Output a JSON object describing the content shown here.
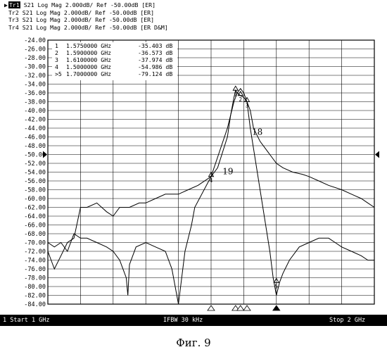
{
  "traces_header": [
    {
      "id": "Tr1",
      "text": "S21 Log Mag 2.000dB/ Ref -50.00dB [ER]",
      "selected": true
    },
    {
      "id": "Tr2",
      "text": "S21 Log Mag 2.000dB/ Ref -50.00dB [ER]",
      "selected": false
    },
    {
      "id": "Tr3",
      "text": "S21 Log Mag 2.000dB/ Ref -50.00dB [ER]",
      "selected": false
    },
    {
      "id": "Tr4",
      "text": "S21 Log Mag 2.000dB/ Ref -50.00dB [ER D&M]",
      "selected": false
    }
  ],
  "status": {
    "left": "1  Start 1 GHz",
    "center": "IFBW 30 kHz",
    "right": "Stop 2 GHz"
  },
  "caption": "Фиг. 9",
  "colors": {
    "trace": "#000000",
    "grid": "#000000",
    "background": "#ffffff"
  },
  "chart_data": {
    "type": "line",
    "x_range_ghz": [
      1.0,
      2.0
    ],
    "ylim": [
      -84,
      -24
    ],
    "ytick_step": 2,
    "yticks": [
      "-24.00",
      "-26.00",
      "-28.00",
      "-30.00",
      "-32.00",
      "-34.00",
      "-36.00",
      "-38.00",
      "-40.00",
      "-42.00",
      "-44.00",
      "-46.00",
      "-48.00",
      "-50.00",
      "-52.00",
      "-54.00",
      "-56.00",
      "-58.00",
      "-60.00",
      "-62.00",
      "-64.00",
      "-66.00",
      "-68.00",
      "-70.00",
      "-72.00",
      "-74.00",
      "-76.00",
      "-78.00",
      "-80.00",
      "-82.00",
      "-84.00"
    ],
    "x_divisions": 10,
    "grid": true,
    "reference_level": -50,
    "marker_table": [
      {
        "n": "1",
        "freq": "1.5750000 GHz",
        "value": "-35.403 dB"
      },
      {
        "n": "2",
        "freq": "1.5900000 GHz",
        "value": "-36.573 dB"
      },
      {
        "n": "3",
        "freq": "1.6100000 GHz",
        "value": "-37.974 dB"
      },
      {
        "n": "4",
        "freq": "1.5000000 GHz",
        "value": "-54.986 dB"
      },
      {
        "n": ">5",
        "freq": "1.7000000 GHz",
        "value": "-79.124 dB"
      }
    ],
    "markers": [
      {
        "label": "1",
        "x": 1.575,
        "y": -35.4
      },
      {
        "label": "2",
        "x": 1.59,
        "y": -36.6
      },
      {
        "label": "3",
        "x": 1.61,
        "y": -38.0
      },
      {
        "label": "4",
        "x": 1.5,
        "y": -55.0
      },
      {
        "label": "5",
        "x": 1.7,
        "y": -79.1
      }
    ],
    "annotations": [
      {
        "text": "18",
        "x": 1.625,
        "y": -45.5
      },
      {
        "text": "19",
        "x": 1.535,
        "y": -54.5
      }
    ],
    "series": [
      {
        "x": [
          1.0,
          1.02,
          1.04,
          1.06,
          1.08,
          1.1,
          1.12,
          1.15,
          1.18,
          1.2,
          1.22,
          1.25,
          1.28,
          1.3,
          1.33,
          1.36,
          1.4,
          1.43,
          1.46,
          1.5,
          1.52,
          1.55,
          1.56,
          1.57,
          1.575,
          1.58,
          1.59,
          1.6,
          1.61,
          1.62,
          1.63,
          1.65,
          1.68,
          1.7,
          1.72,
          1.75,
          1.78,
          1.8,
          1.83,
          1.86,
          1.9,
          1.93,
          1.96,
          1.98,
          2.0
        ],
        "y": [
          -72,
          -76,
          -73,
          -70,
          -69,
          -62,
          -62,
          -61,
          -63,
          -64,
          -62,
          -62,
          -61,
          -61,
          -60,
          -59,
          -59,
          -58,
          -57,
          -55,
          -53,
          -46,
          -41,
          -37,
          -35.4,
          -36,
          -36.6,
          -37,
          -38,
          -40,
          -44,
          -47,
          -50,
          -52,
          -53,
          -54,
          -54.5,
          -55,
          -56,
          -57,
          -58,
          -59,
          -60,
          -61,
          -62
        ]
      },
      {
        "x": [
          1.0,
          1.02,
          1.04,
          1.06,
          1.08,
          1.1,
          1.12,
          1.15,
          1.18,
          1.2,
          1.22,
          1.24,
          1.245,
          1.25,
          1.27,
          1.3,
          1.33,
          1.36,
          1.38,
          1.4,
          1.42,
          1.44,
          1.45,
          1.5,
          1.55,
          1.57,
          1.58,
          1.59,
          1.6,
          1.61,
          1.62,
          1.65,
          1.68,
          1.69,
          1.7,
          1.71,
          1.72,
          1.74,
          1.77,
          1.8,
          1.83,
          1.86,
          1.88,
          1.9,
          1.93,
          1.96,
          1.98,
          2.0
        ],
        "y": [
          -70,
          -71,
          -70,
          -72,
          -68,
          -69,
          -69,
          -70,
          -71,
          -72,
          -74,
          -78,
          -82,
          -75,
          -71,
          -70,
          -71,
          -72,
          -76,
          -84,
          -72,
          -66,
          -62,
          -55,
          -44,
          -38,
          -36,
          -35,
          -36,
          -38,
          -44,
          -58,
          -72,
          -78,
          -82,
          -79,
          -77,
          -74,
          -71,
          -70,
          -69,
          -69,
          -70,
          -71,
          -72,
          -73,
          -74,
          -74
        ]
      }
    ]
  }
}
